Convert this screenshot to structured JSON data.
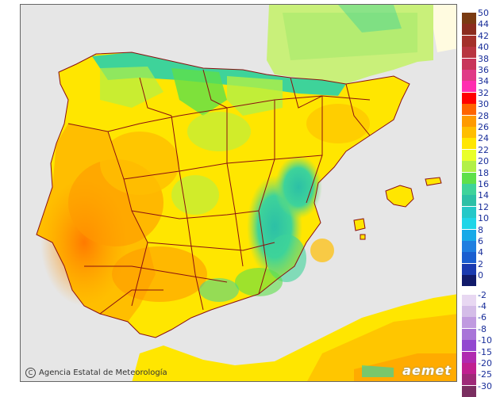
{
  "map": {
    "credit": "Agencia Estatal de Meteorología",
    "credit_symbol": "C",
    "logo": "aemet"
  },
  "legend": {
    "positive": [
      {
        "label": "50",
        "color": "#7a3a12"
      },
      {
        "label": "44",
        "color": "#8b2c1e"
      },
      {
        "label": "42",
        "color": "#a3302a"
      },
      {
        "label": "40",
        "color": "#b83540"
      },
      {
        "label": "38",
        "color": "#c8355a"
      },
      {
        "label": "36",
        "color": "#e03a86"
      },
      {
        "label": "34",
        "color": "#ff2db0"
      },
      {
        "label": "32",
        "color": "#ff0000"
      },
      {
        "label": "30",
        "color": "#ff6400"
      },
      {
        "label": "28",
        "color": "#ff9a00"
      },
      {
        "label": "26",
        "color": "#ffbe00"
      },
      {
        "label": "24",
        "color": "#ffe600"
      },
      {
        "label": "22",
        "color": "#e9ff2a"
      },
      {
        "label": "20",
        "color": "#b2f046"
      },
      {
        "label": "18",
        "color": "#5ee04a"
      },
      {
        "label": "16",
        "color": "#3ed39a"
      },
      {
        "label": "14",
        "color": "#2cc0a6"
      },
      {
        "label": "12",
        "color": "#24c8c8"
      },
      {
        "label": "10",
        "color": "#1fd5e8"
      },
      {
        "label": "8",
        "color": "#18a9e8"
      },
      {
        "label": "6",
        "color": "#1f7ee0"
      },
      {
        "label": "4",
        "color": "#1a5ed0"
      },
      {
        "label": "2",
        "color": "#1a3ab0"
      },
      {
        "label": "0",
        "color": "#111a6a"
      }
    ],
    "negative": [
      {
        "label": "-2",
        "color": "#e8d8f2"
      },
      {
        "label": "-4",
        "color": "#d4bde8"
      },
      {
        "label": "-6",
        "color": "#c09ae0"
      },
      {
        "label": "-8",
        "color": "#a875d8"
      },
      {
        "label": "-10",
        "color": "#9248d0"
      },
      {
        "label": "-15",
        "color": "#b02ab0"
      },
      {
        "label": "-20",
        "color": "#c02090"
      },
      {
        "label": "-25",
        "color": "#9e2a78"
      },
      {
        "label": "-30",
        "color": "#7a2e60"
      }
    ]
  },
  "colors": {
    "sea": "#e6e6e6",
    "border": "#8b1010",
    "france_temp": "#c9f07a"
  }
}
